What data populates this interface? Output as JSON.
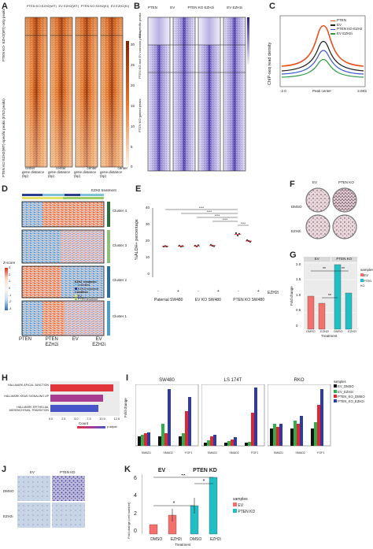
{
  "panels": {
    "A": {
      "letter": "A",
      "columns": [
        "PTEN KO EZH2(WT)",
        "EV EZH2(WT)",
        "PTEN KO EZH2(KI)",
        "EV EZH2(KI)"
      ],
      "row_labels": [
        "PTEN KO- EZH2(WT)-only peaks",
        "PTEN KO EZH2(WT)-specific peaks (6753 peaks)"
      ],
      "axis_labels": [
        "gene distance (bp)",
        "gene distance (bp)",
        "gene distance (bp)",
        "gene distance (bp)"
      ],
      "center_label": "center",
      "colorbar_ticks": [
        "30",
        "25",
        "20",
        "15",
        "10",
        "5",
        "0"
      ]
    },
    "B": {
      "letter": "B",
      "columns": [
        "PTEN",
        "EV",
        "PTEN KO EZH2i",
        "EV EZH2i"
      ],
      "row_labels": [
        "EV-specific peaks",
        "PTEN KO and EV common peaks",
        "PTEN KO gained peaks"
      ]
    },
    "C": {
      "letter": "C",
      "ylabel": "ChIP-seq read density",
      "xticks": [
        "-2.0",
        "Peak center",
        "2.0Kb"
      ],
      "legend": [
        {
          "label": "PTEN",
          "color": "#e8501f"
        },
        {
          "label": "EV",
          "color": "#222222"
        },
        {
          "label": "PTEN KO EZH2",
          "color": "#3a58c9"
        },
        {
          "label": "EV EZH2i",
          "color": "#2f9a45"
        }
      ]
    },
    "D": {
      "letter": "D",
      "clusters": [
        "Cluster 4",
        "Cluster 3",
        "Cluster 2",
        "Cluster 1"
      ],
      "zscore_label": "Z-score",
      "zscore_ticks": [
        "3",
        "2",
        "1",
        "0",
        "-1",
        "-2",
        "-3"
      ],
      "top_label": "EZH2 treatment",
      "legend_items": [
        "EZH2_treatment",
        "untreated",
        "EZH2i treatment",
        "Condition",
        "EV",
        "PTEN knockout"
      ],
      "xlabels": [
        "PTEN",
        "PTEN\nEZH2i",
        "EV",
        "EV\nEZH2i"
      ]
    },
    "E": {
      "letter": "E",
      "ylabel": "%ALDH+ percentage",
      "yticks": [
        "40",
        "30",
        "20",
        "10",
        "0"
      ],
      "signs": [
        "-",
        "+",
        "-",
        "+",
        "-",
        "+"
      ],
      "groups": [
        "Paternal SW480",
        "EV KO SW480",
        "PTEN KO SW480"
      ],
      "treatment": "EZH2i",
      "sig": [
        "****",
        "****",
        "****",
        "****",
        "****"
      ]
    },
    "F": {
      "letter": "F",
      "cols": [
        "EV",
        "PTEN KO"
      ],
      "rows": [
        "DMSO",
        "EZH2i"
      ]
    },
    "G": {
      "letter": "G",
      "ylabel": "Fold change",
      "yticks": [
        "2.0",
        "1.5",
        "1.0",
        "0.5",
        "0"
      ],
      "xlabels": [
        "DMSO",
        "EZH2i",
        "DMSO",
        "EZH2i"
      ],
      "xtitle": "Treatment",
      "headers": [
        "EV",
        "PTEN KO"
      ],
      "legend_title": "samples",
      "legend": [
        {
          "label": "EV",
          "color": "#f4706b"
        },
        {
          "label": "PTEN KO",
          "color": "#1fbfc4"
        }
      ],
      "sig": [
        "**",
        "**",
        "**"
      ]
    },
    "H": {
      "letter": "H",
      "bars": [
        {
          "label": "HALLMARK APICAL JUNCTION",
          "value": 12.0,
          "color": "#e2343b"
        },
        {
          "label": "HALLMARK KRAS SIGNALING UP",
          "value": 10.1,
          "color": "#a83b92"
        },
        {
          "label": "HALLMARK EPITHELIAL MESENCHYMAL TRANSITION",
          "value": 9.2,
          "color": "#4656c8"
        }
      ],
      "xlabel": "Count",
      "xticks": [
        "0.0",
        "2.5",
        "5.0",
        "7.5",
        "10.0",
        "12.5"
      ],
      "legend_label": "p.adjust"
    },
    "I": {
      "letter": "I",
      "subplots": [
        "SW480",
        "LS 174T",
        "RKO"
      ],
      "genes": [
        "SMAD1",
        "SMAD2",
        "FGF1"
      ],
      "ylabel": "Fold change",
      "legend_title": "samples",
      "legend": [
        {
          "label": "EV_DMSO",
          "color": "#111111"
        },
        {
          "label": "EV_EZH2i",
          "color": "#2fae4a"
        },
        {
          "label": "PTEN_KO_DMSO",
          "color": "#e2262c"
        },
        {
          "label": "PTEN_KO_EZH2i",
          "color": "#2e3aa6"
        }
      ]
    },
    "J": {
      "letter": "J",
      "cols": [
        "EV",
        "PTEN KD"
      ],
      "rows": [
        "DMSO",
        "EZH2i"
      ]
    },
    "K": {
      "letter": "K",
      "headers": [
        "EV",
        "PTEN KD"
      ],
      "ylabel": "Fold change (cell number)",
      "yticks": [
        "6",
        "4",
        "2",
        "0"
      ],
      "xlabels": [
        "DMSO",
        "EZH2i",
        "DMSO",
        "EZH2i"
      ],
      "xtitle": "Treatment",
      "legend_title": "samples",
      "legend": [
        {
          "label": "EV",
          "color": "#f4706b"
        },
        {
          "label": "PTEN KD",
          "color": "#1fbfc4"
        }
      ],
      "sig": [
        "**",
        "*",
        "*"
      ]
    }
  }
}
